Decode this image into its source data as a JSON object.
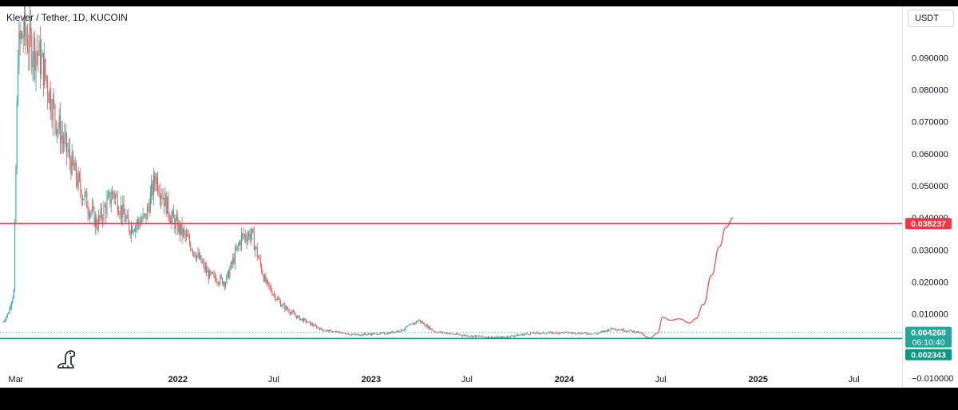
{
  "header": {
    "symbol_title": "Klever / Tether, 1D, KUCOIN",
    "currency": "USDT"
  },
  "logo": {
    "icon": "tradingview-dino-icon"
  },
  "colors": {
    "up": "#26a69a",
    "down": "#ef5350",
    "resistance": "#f23645",
    "support": "#089981",
    "current_price": "#26a69a",
    "projection": "#ef5350"
  },
  "price_tags": {
    "resistance": "0.038237",
    "current": "0.004268",
    "countdown": "06:10:40",
    "support": "0.002343"
  },
  "chart_data": {
    "type": "candlestick",
    "title": "Klever / Tether, 1D, KUCOIN",
    "y_unit": "USDT",
    "ylim": [
      -0.013,
      0.106
    ],
    "y_ticks": [
      {
        "value": -0.01,
        "label": "−0.010000"
      },
      {
        "value": 0.01,
        "label": "0.010000"
      },
      {
        "value": 0.02,
        "label": "0.020000"
      },
      {
        "value": 0.03,
        "label": "0.030000"
      },
      {
        "value": 0.04,
        "label": "0.040000"
      },
      {
        "value": 0.05,
        "label": "0.050000"
      },
      {
        "value": 0.06,
        "label": "0.060000"
      },
      {
        "value": 0.07,
        "label": "0.070000"
      },
      {
        "value": 0.08,
        "label": "0.080000"
      },
      {
        "value": 0.09,
        "label": "0.090000"
      }
    ],
    "x_range": [
      "2021-01-30",
      "2025-09-30"
    ],
    "x_ticks": [
      {
        "date": "2021-03-01",
        "label": "Mar",
        "bold": false
      },
      {
        "date": "2022-01-01",
        "label": "2022",
        "bold": true
      },
      {
        "date": "2022-07-01",
        "label": "Jul",
        "bold": false
      },
      {
        "date": "2023-01-01",
        "label": "2023",
        "bold": true
      },
      {
        "date": "2023-07-01",
        "label": "Jul",
        "bold": false
      },
      {
        "date": "2024-01-01",
        "label": "2024",
        "bold": true
      },
      {
        "date": "2024-07-01",
        "label": "Jul",
        "bold": false
      },
      {
        "date": "2025-01-01",
        "label": "2025",
        "bold": true
      },
      {
        "date": "2025-07-01",
        "label": "Jul",
        "bold": false
      }
    ],
    "price_path": [
      {
        "date": "2021-02-05",
        "close": 0.0075
      },
      {
        "date": "2021-02-15",
        "close": 0.0105
      },
      {
        "date": "2021-02-25",
        "close": 0.017
      },
      {
        "date": "2021-03-01",
        "close": 0.055
      },
      {
        "date": "2021-03-05",
        "close": 0.092
      },
      {
        "date": "2021-03-15",
        "close": 0.098
      },
      {
        "date": "2021-03-28",
        "close": 0.094
      },
      {
        "date": "2021-04-10",
        "close": 0.092
      },
      {
        "date": "2021-04-25",
        "close": 0.085
      },
      {
        "date": "2021-05-15",
        "close": 0.071
      },
      {
        "date": "2021-06-01",
        "close": 0.063
      },
      {
        "date": "2021-07-01",
        "close": 0.049
      },
      {
        "date": "2021-08-01",
        "close": 0.038
      },
      {
        "date": "2021-09-01",
        "close": 0.048
      },
      {
        "date": "2021-10-01",
        "close": 0.037
      },
      {
        "date": "2021-11-01",
        "close": 0.04
      },
      {
        "date": "2021-11-20",
        "close": 0.053
      },
      {
        "date": "2021-12-20",
        "close": 0.04
      },
      {
        "date": "2022-01-20",
        "close": 0.033
      },
      {
        "date": "2022-03-01",
        "close": 0.022
      },
      {
        "date": "2022-04-01",
        "close": 0.02
      },
      {
        "date": "2022-05-01",
        "close": 0.034
      },
      {
        "date": "2022-05-20",
        "close": 0.035
      },
      {
        "date": "2022-06-15",
        "close": 0.02
      },
      {
        "date": "2022-07-15",
        "close": 0.013
      },
      {
        "date": "2022-08-15",
        "close": 0.009
      },
      {
        "date": "2022-10-01",
        "close": 0.005
      },
      {
        "date": "2022-12-01",
        "close": 0.0035
      },
      {
        "date": "2023-02-01",
        "close": 0.004
      },
      {
        "date": "2023-03-01",
        "close": 0.005
      },
      {
        "date": "2023-04-01",
        "close": 0.008
      },
      {
        "date": "2023-05-01",
        "close": 0.0045
      },
      {
        "date": "2023-07-01",
        "close": 0.0032
      },
      {
        "date": "2023-09-01",
        "close": 0.0026
      },
      {
        "date": "2023-11-01",
        "close": 0.004
      },
      {
        "date": "2024-01-01",
        "close": 0.0042
      },
      {
        "date": "2024-03-01",
        "close": 0.0038
      },
      {
        "date": "2024-04-01",
        "close": 0.0055
      },
      {
        "date": "2024-05-20",
        "close": 0.0043
      }
    ],
    "projection_path": [
      {
        "date": "2024-05-20",
        "value": 0.0043
      },
      {
        "date": "2024-06-10",
        "value": 0.0025
      },
      {
        "date": "2024-06-25",
        "value": 0.004
      },
      {
        "date": "2024-07-05",
        "value": 0.009
      },
      {
        "date": "2024-07-20",
        "value": 0.008
      },
      {
        "date": "2024-08-05",
        "value": 0.0085
      },
      {
        "date": "2024-08-25",
        "value": 0.0072
      },
      {
        "date": "2024-09-05",
        "value": 0.0085
      },
      {
        "date": "2024-09-20",
        "value": 0.013
      },
      {
        "date": "2024-10-05",
        "value": 0.022
      },
      {
        "date": "2024-10-20",
        "value": 0.031
      },
      {
        "date": "2024-11-01",
        "value": 0.037
      },
      {
        "date": "2024-11-15",
        "value": 0.04
      }
    ],
    "horizontal_lines": [
      {
        "name": "resistance",
        "value": 0.038237
      },
      {
        "name": "support",
        "value": 0.002343
      }
    ],
    "current_price": 0.004268,
    "grid": false
  }
}
